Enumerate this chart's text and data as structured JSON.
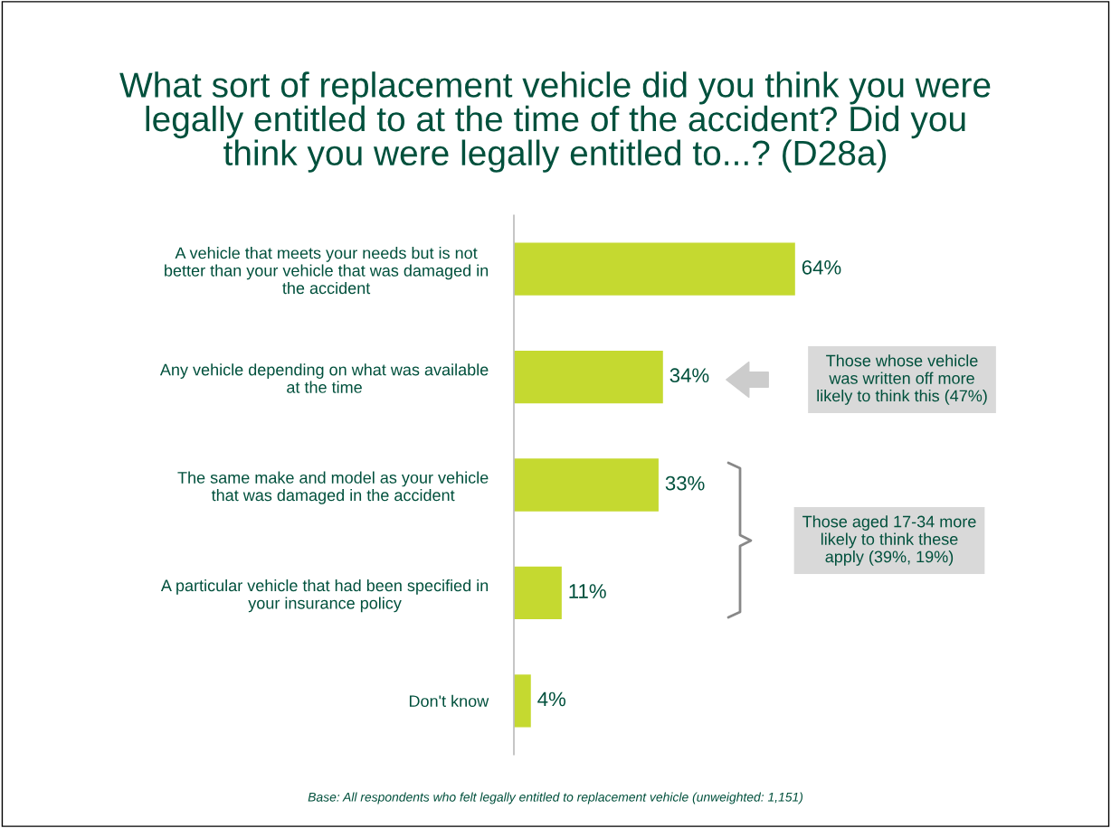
{
  "chart_data": {
    "type": "bar",
    "orientation": "horizontal",
    "title": "What sort of replacement vehicle did you think you were\nlegally entitled to at the time of the accident? Did you\nthink you were legally entitled to...? (D28a)",
    "categories": [
      "A vehicle that meets your needs but is not\nbetter than your vehicle that was damaged in\nthe accident",
      "Any vehicle depending on what was available\nat the time",
      "The same make and model as your vehicle\nthat was damaged in the accident",
      "A particular vehicle that had been specified in\nyour insurance policy",
      "Don't know"
    ],
    "values": [
      64,
      34,
      33,
      11,
      4
    ],
    "value_labels": [
      "64%",
      "34%",
      "33%",
      "11%",
      "4%"
    ],
    "color": "#c5d930",
    "grid": false,
    "legend": false,
    "annotations": [
      "Those whose vehicle\nwas written off more\nlikely to think this (47%)",
      "Those aged 17-34 more\nlikely to think these\napply (39%, 19%)",
      "Base: All respondents who felt legally entitled to replacement vehicle (unweighted: 1,151)"
    ]
  }
}
